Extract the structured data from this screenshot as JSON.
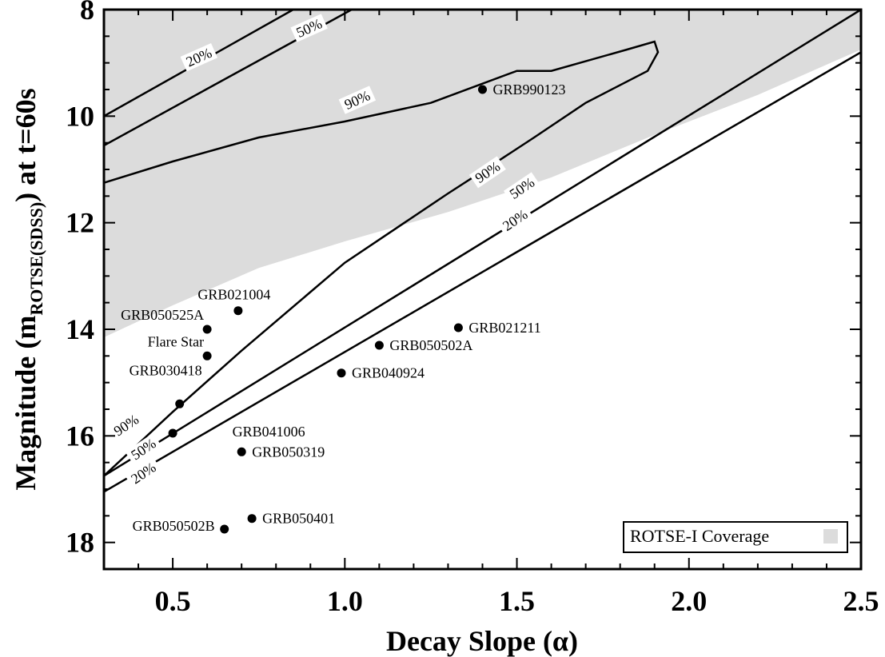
{
  "chart_data": {
    "type": "scatter",
    "xlabel": "Decay Slope (α)",
    "ylabel": {
      "prefix": "Magnitude (m",
      "subscript": "ROTSE(SDSS)",
      "suffix": ") at t=60s"
    },
    "xlim": [
      0.3,
      2.5
    ],
    "ylim": [
      18.5,
      8
    ],
    "y_inverted": true,
    "xticks": [
      "0.5",
      "1.0",
      "1.5",
      "2.0",
      "2.5"
    ],
    "yticks": [
      "8",
      "10",
      "12",
      "14",
      "16",
      "18"
    ],
    "grid": false,
    "legend": {
      "position": "bottom-right",
      "label": "ROTSE-I Coverage",
      "color": "#dcdcdc"
    },
    "coverage_region_color": "#dcdcdc",
    "points": [
      {
        "label": "GRB990123",
        "x": 1.4,
        "y": 9.5
      },
      {
        "label": "GRB021004",
        "x": 0.69,
        "y": 13.65
      },
      {
        "label": "GRB050525A",
        "x": 0.6,
        "y": 14.0
      },
      {
        "label": "Flare Star",
        "x": 0.6,
        "y": 14.5
      },
      {
        "label": "GRB030418",
        "x": 0.52,
        "y": 15.4
      },
      {
        "label": "GRB021211",
        "x": 1.33,
        "y": 13.97
      },
      {
        "label": "GRB050502A",
        "x": 1.1,
        "y": 14.3
      },
      {
        "label": "GRB040924",
        "x": 0.99,
        "y": 14.82
      },
      {
        "label": "GRB041006",
        "x": 0.5,
        "y": 15.95
      },
      {
        "label": "GRB050319",
        "x": 0.7,
        "y": 16.3
      },
      {
        "label": "GRB050401",
        "x": 0.73,
        "y": 17.55
      },
      {
        "label": "GRB050502B",
        "x": 0.65,
        "y": 17.75
      }
    ],
    "contours": [
      {
        "label": "20%",
        "kind": "upper",
        "points": [
          [
            0.3,
            10.0
          ],
          [
            0.85,
            8.0
          ]
        ],
        "label_at": [
          0.58,
          8.95
        ]
      },
      {
        "label": "50%",
        "kind": "upper",
        "points": [
          [
            0.3,
            10.55
          ],
          [
            1.02,
            8.0
          ]
        ],
        "label_at": [
          0.9,
          8.4
        ]
      },
      {
        "label": "90%",
        "kind": "closed",
        "points": [
          [
            0.3,
            11.25
          ],
          [
            0.5,
            10.85
          ],
          [
            0.75,
            10.4
          ],
          [
            1.0,
            10.1
          ],
          [
            1.25,
            9.75
          ],
          [
            1.5,
            9.15
          ],
          [
            1.6,
            9.15
          ],
          [
            1.82,
            8.75
          ],
          [
            1.9,
            8.6
          ],
          [
            1.91,
            8.8
          ],
          [
            1.88,
            9.15
          ],
          [
            1.7,
            9.75
          ],
          [
            1.55,
            10.4
          ],
          [
            1.42,
            10.95
          ],
          [
            1.3,
            11.45
          ],
          [
            1.0,
            12.75
          ],
          [
            0.7,
            14.4
          ],
          [
            0.5,
            15.55
          ],
          [
            0.3,
            16.75
          ]
        ],
        "label_at": [
          1.04,
          9.75
        ]
      },
      {
        "label": "90%",
        "kind": "lower-label",
        "points": [],
        "label_at": [
          1.42,
          11.1
        ]
      },
      {
        "label": "90%",
        "kind": "lower-label",
        "points": [],
        "label_at": [
          0.37,
          15.85
        ]
      },
      {
        "label": "50%",
        "kind": "lower",
        "points": [
          [
            0.3,
            16.75
          ],
          [
            2.5,
            8.0
          ]
        ],
        "label_at": [
          0.42,
          16.3
        ]
      },
      {
        "label": "20%",
        "kind": "lower",
        "points": [
          [
            0.3,
            17.05
          ],
          [
            2.5,
            8.8
          ]
        ],
        "label_at": [
          0.42,
          16.75
        ]
      }
    ],
    "contour_label_extra": [
      {
        "label": "50%",
        "x": 1.52,
        "y": 11.4
      },
      {
        "label": "20%",
        "x": 1.5,
        "y": 12.0
      }
    ]
  }
}
